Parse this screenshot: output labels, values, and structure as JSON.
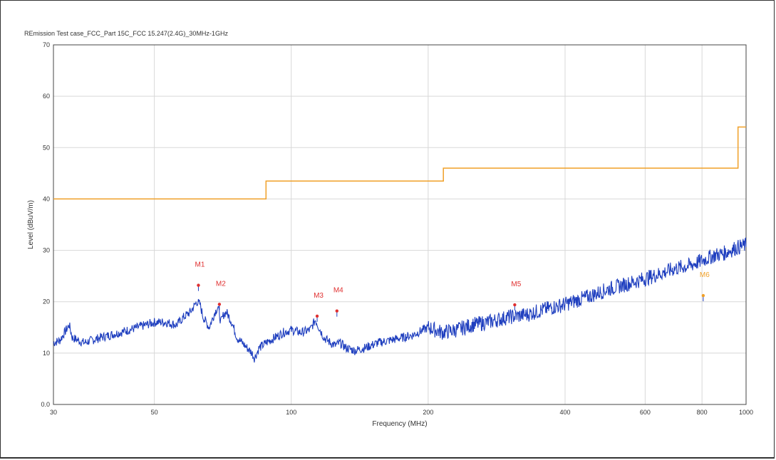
{
  "chart_data": {
    "type": "line",
    "title": "REmission Test case_FCC_Part 15C_FCC 15.247(2.4G)_30MHz-1GHz",
    "xlabel": "Frequency (MHz)",
    "ylabel": "Level (dBuV/m)",
    "x_scale": "log",
    "xlim": [
      30,
      1000
    ],
    "ylim": [
      0,
      70
    ],
    "x_ticks": [
      30,
      50,
      100,
      200,
      400,
      600,
      800,
      1000
    ],
    "y_ticks": [
      0.0,
      10,
      20,
      30,
      40,
      50,
      60,
      70
    ],
    "y_tick_labels": [
      "0.0",
      "10",
      "20",
      "30",
      "40",
      "50",
      "60",
      "70"
    ],
    "grid": true,
    "colors": {
      "spectrum": "#1f3fbf",
      "limit": "#f0a028",
      "marker": "#e03030",
      "marker_m6": "#f0a028"
    },
    "series": [
      {
        "role": "limit",
        "x": [
          30,
          88,
          88,
          216,
          216,
          960,
          960,
          1000
        ],
        "y": [
          40,
          40,
          43.5,
          43.5,
          46,
          46,
          54,
          54
        ]
      },
      {
        "role": "spectrum",
        "x": [
          30,
          31,
          32.5,
          33,
          35,
          38,
          42,
          46,
          50,
          53,
          56,
          58,
          60,
          62,
          63,
          64,
          66,
          68,
          69,
          70,
          71,
          72,
          74,
          76,
          78,
          80,
          82,
          83,
          85,
          88,
          92,
          96,
          100,
          105,
          110,
          113,
          115,
          118,
          122,
          125,
          128,
          132,
          138,
          145,
          155,
          165,
          175,
          185,
          200,
          215,
          230,
          250,
          270,
          300,
          330,
          360,
          400,
          450,
          500,
          550,
          600,
          650,
          700,
          750,
          800,
          850,
          900,
          950,
          1000
        ],
        "y": [
          12,
          12.5,
          15.5,
          13,
          12,
          13,
          14,
          15,
          16,
          16,
          15.5,
          17,
          18,
          20,
          19.5,
          17,
          15,
          18,
          19,
          16,
          17.5,
          18,
          16,
          13,
          12,
          11,
          10,
          9,
          11,
          12,
          13,
          14,
          14.5,
          14,
          14.5,
          16.5,
          15,
          13,
          12,
          11.5,
          12,
          11,
          10.5,
          11,
          12,
          12.5,
          13,
          13.5,
          15,
          14,
          14.5,
          15.5,
          16,
          17,
          17.5,
          18.5,
          19.5,
          21,
          22.5,
          23.5,
          24.5,
          25.5,
          26.5,
          27,
          28,
          29,
          29.5,
          30.5,
          31
        ]
      }
    ],
    "markers": [
      {
        "label": "M1",
        "x": 62.5,
        "y": 23.2
      },
      {
        "label": "M2",
        "x": 69.5,
        "y": 19.5
      },
      {
        "label": "M3",
        "x": 114,
        "y": 17.2
      },
      {
        "label": "M4",
        "x": 126,
        "y": 18.2
      },
      {
        "label": "M5",
        "x": 310,
        "y": 19.4
      },
      {
        "label": "M6",
        "x": 805,
        "y": 21.2
      }
    ]
  }
}
